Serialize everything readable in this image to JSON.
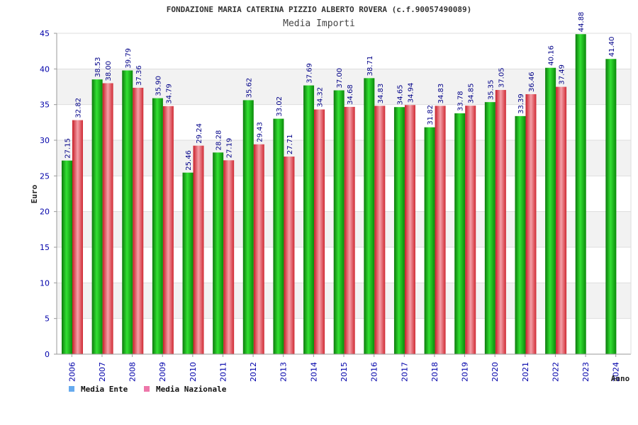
{
  "chart_data": {
    "type": "bar",
    "title": "FONDAZIONE MARIA CATERINA PIZZIO ALBERTO ROVERA (c.f.90057490089)",
    "subtitle": "Media Importi",
    "xlabel": "Anno",
    "ylabel": "Euro",
    "ylim": [
      0,
      45
    ],
    "yticks": [
      "0",
      "5",
      "10",
      "15",
      "20",
      "25",
      "30",
      "35",
      "40",
      "45"
    ],
    "grid": true,
    "legend_position": "bottom-left",
    "categories": [
      "2006",
      "2007",
      "2008",
      "2009",
      "2010",
      "2011",
      "2012",
      "2013",
      "2014",
      "2015",
      "2016",
      "2017",
      "2018",
      "2019",
      "2020",
      "2021",
      "2022",
      "2023",
      "2024"
    ],
    "series": [
      {
        "name": "Media Ente",
        "color": "#22bb22",
        "legend_color": "#66aaee",
        "values": [
          27.15,
          38.53,
          39.79,
          35.9,
          25.46,
          28.28,
          35.62,
          33.02,
          37.69,
          37.0,
          38.71,
          34.65,
          31.82,
          33.78,
          35.35,
          33.39,
          40.16,
          44.88,
          41.4
        ],
        "labels": [
          "27.15",
          "38.53",
          "39.79",
          "35.90",
          "25.46",
          "28.28",
          "35.62",
          "33.02",
          "37.69",
          "37.00",
          "38.71",
          "34.65",
          "31.82",
          "33.78",
          "35.35",
          "33.39",
          "40.16",
          "44.88",
          "41.40"
        ]
      },
      {
        "name": "Media Nazionale",
        "color": "#ee4444",
        "legend_color": "#ee77aa",
        "values": [
          32.82,
          38.0,
          37.36,
          34.79,
          29.24,
          27.19,
          29.43,
          27.71,
          34.32,
          34.68,
          34.83,
          34.94,
          34.83,
          34.85,
          37.05,
          36.46,
          37.49,
          null,
          null
        ],
        "labels": [
          "32.82",
          "38.00",
          "37.36",
          "34.79",
          "29.24",
          "27.19",
          "29.43",
          "27.71",
          "34.32",
          "34.68",
          "34.83",
          "34.94",
          "34.83",
          "34.85",
          "37.05",
          "36.46",
          "37.49",
          null,
          null
        ]
      }
    ]
  }
}
